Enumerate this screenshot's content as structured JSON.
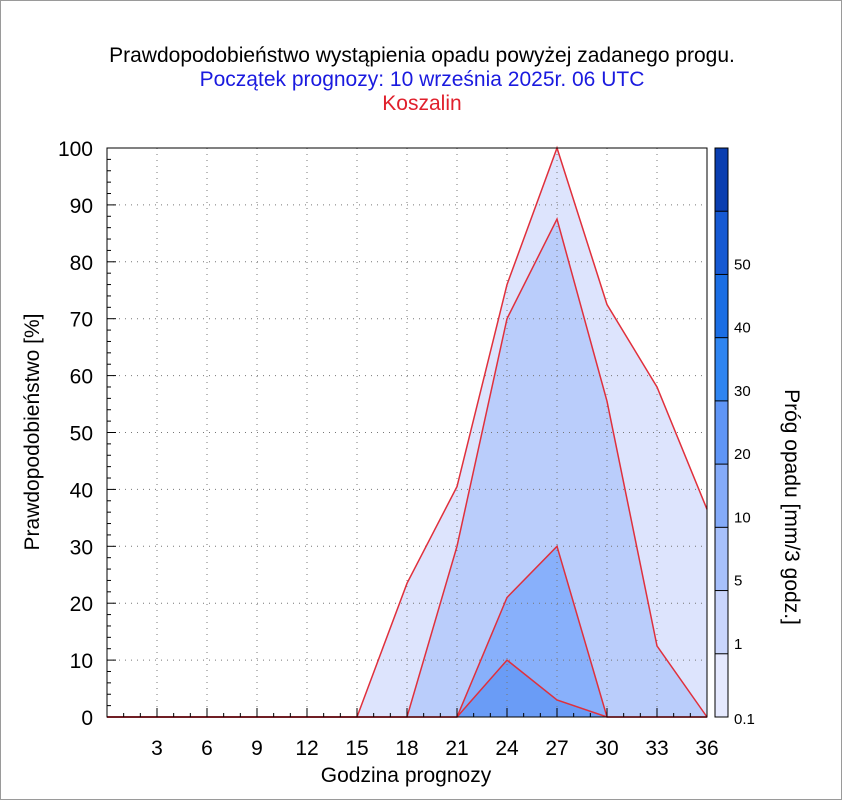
{
  "header": {
    "title": "Prawdopodobieństwo wystąpienia opadu powyżej zadanego progu.",
    "subtitle": "Początek prognozy: 10 września 2025r. 06 UTC",
    "location": "Koszalin",
    "subtitle_color": "#1a1adf",
    "location_color": "#e0202c"
  },
  "chart_data": {
    "type": "area",
    "title": "Prawdopodobieństwo wystąpienia opadu powyżej zadanego progu.",
    "xlabel": "Godzina prognozy",
    "ylabel": "Prawdopodobieństwo [%]",
    "colorbar_label": "Próg opadu [mm/3 godz.]",
    "xlim": [
      0,
      36
    ],
    "ylim": [
      0,
      100
    ],
    "x_ticks": [
      3,
      6,
      9,
      12,
      15,
      18,
      21,
      24,
      27,
      30,
      33,
      36
    ],
    "y_ticks": [
      0,
      10,
      20,
      30,
      40,
      50,
      60,
      70,
      80,
      90,
      100
    ],
    "grid": true,
    "line_color": "#e0303c",
    "x": [
      0,
      3,
      6,
      9,
      12,
      15,
      18,
      21,
      24,
      27,
      30,
      33,
      36
    ],
    "series": [
      {
        "threshold": "0.1",
        "color": "#dde4fd",
        "values": [
          0,
          0,
          0,
          0,
          0,
          0,
          23.5,
          40.5,
          76,
          100,
          72.5,
          58,
          36.5
        ]
      },
      {
        "threshold": "1",
        "color": "#bacdfb",
        "values": [
          0,
          0,
          0,
          0,
          0,
          0,
          0,
          30,
          70,
          87.5,
          55.5,
          12.5,
          0
        ]
      },
      {
        "threshold": "5",
        "color": "#88b0fb",
        "values": [
          0,
          0,
          0,
          0,
          0,
          0,
          0,
          0,
          21,
          30,
          0,
          0,
          0
        ]
      },
      {
        "threshold": "10",
        "color": "#6a9cf6",
        "values": [
          0,
          0,
          0,
          0,
          0,
          0,
          0,
          0,
          10,
          3,
          0,
          0,
          0
        ]
      }
    ],
    "colorbar": {
      "tick_labels": [
        "0.1",
        "1",
        "5",
        "10",
        "20",
        "30",
        "40",
        "50"
      ],
      "colors": [
        "#e5e9fe",
        "#c9d5fc",
        "#a7c0fb",
        "#85abf9",
        "#5f95f6",
        "#2f85f1",
        "#1b6ee4",
        "#1659d3",
        "#0a3eb0"
      ]
    }
  }
}
